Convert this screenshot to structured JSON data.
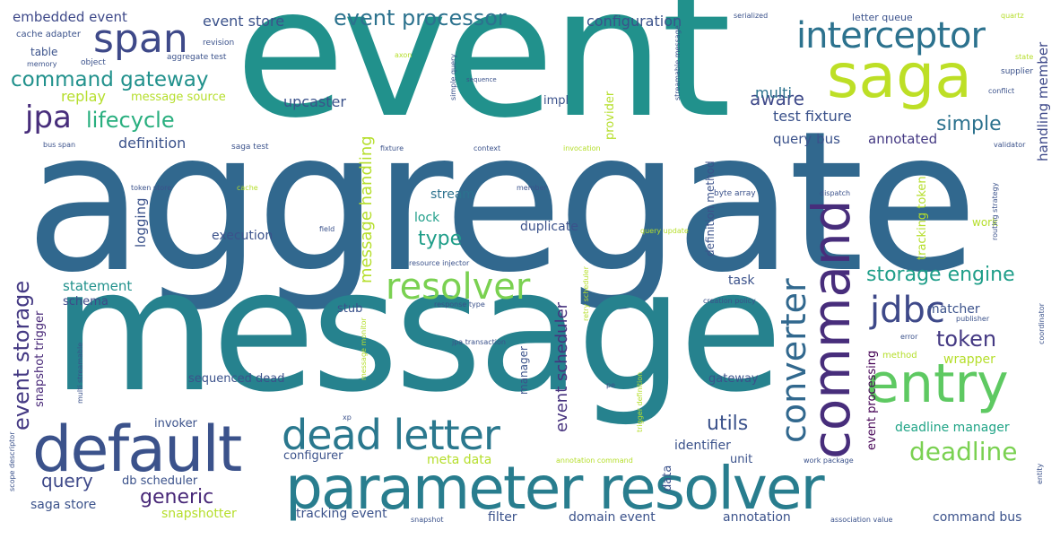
{
  "words": [
    {
      "text": "aggregate",
      "color": "#31688e"
    },
    {
      "text": "event",
      "color": "#21918c"
    },
    {
      "text": "message",
      "color": "#26828e"
    },
    {
      "text": "parameter resolver",
      "color": "#287d8e"
    },
    {
      "text": "default",
      "color": "#3b528b"
    },
    {
      "text": "command",
      "color": "#472d7b"
    },
    {
      "text": "saga",
      "color": "#bddf26"
    },
    {
      "text": "entry",
      "color": "#5ec962"
    },
    {
      "text": "dead letter",
      "color": "#2a788e"
    },
    {
      "text": "span",
      "color": "#3e4989"
    },
    {
      "text": "interceptor",
      "color": "#2c728e"
    },
    {
      "text": "converter",
      "color": "#31688e"
    },
    {
      "text": "resolver",
      "color": "#7ad151"
    },
    {
      "text": "jdbc",
      "color": "#3e4989"
    },
    {
      "text": "event processor",
      "color": "#2c728e"
    },
    {
      "text": "command gateway",
      "color": "#21918c"
    },
    {
      "text": "lifecycle",
      "color": "#29af7f"
    },
    {
      "text": "jpa",
      "color": "#472d7b"
    },
    {
      "text": "event storage",
      "color": "#443983"
    },
    {
      "text": "token",
      "color": "#443983"
    },
    {
      "text": "storage engine",
      "color": "#1f9e89"
    },
    {
      "text": "deadline",
      "color": "#7ad151"
    },
    {
      "text": "generic",
      "color": "#482878"
    },
    {
      "text": "simple",
      "color": "#2c728e"
    },
    {
      "text": "type",
      "color": "#1f9e89"
    },
    {
      "text": "query",
      "color": "#3e4989"
    },
    {
      "text": "event scheduler",
      "color": "#46327e"
    },
    {
      "text": "utils",
      "color": "#3b528b"
    },
    {
      "text": "aware",
      "color": "#3e4989"
    },
    {
      "text": "message handling",
      "color": "#b5de2b"
    },
    {
      "text": "embedded event",
      "color": "#3e4989"
    },
    {
      "text": "event store",
      "color": "#3b528b"
    },
    {
      "text": "configuration",
      "color": "#3b528b"
    },
    {
      "text": "replay",
      "color": "#b5de2b"
    },
    {
      "text": "message source",
      "color": "#b5de2b"
    },
    {
      "text": "upcaster",
      "color": "#3b528b"
    },
    {
      "text": "multi",
      "color": "#2c728e"
    },
    {
      "text": "test fixture",
      "color": "#3b528b"
    },
    {
      "text": "definition",
      "color": "#3b528b"
    },
    {
      "text": "query bus",
      "color": "#3b528b"
    },
    {
      "text": "annotated",
      "color": "#443983"
    },
    {
      "text": "handling member",
      "color": "#3e4989"
    },
    {
      "text": "logging",
      "color": "#3b528b"
    },
    {
      "text": "stream",
      "color": "#2c728e"
    },
    {
      "text": "lock",
      "color": "#1f9e89"
    },
    {
      "text": "duplicate",
      "color": "#3b528b"
    },
    {
      "text": "execution",
      "color": "#3b528b"
    },
    {
      "text": "statement",
      "color": "#21918c"
    },
    {
      "text": "schema",
      "color": "#3e4989"
    },
    {
      "text": "snapshot trigger",
      "color": "#482878"
    },
    {
      "text": "task",
      "color": "#3b528b"
    },
    {
      "text": "stub",
      "color": "#3b528b"
    },
    {
      "text": "matcher",
      "color": "#3b528b"
    },
    {
      "text": "wrapper",
      "color": "#b5de2b"
    },
    {
      "text": "event processing",
      "color": "#440154"
    },
    {
      "text": "sequenced dead",
      "color": "#3b528b"
    },
    {
      "text": "gateway",
      "color": "#3b528b"
    },
    {
      "text": "deadline manager",
      "color": "#20a486"
    },
    {
      "text": "identifier",
      "color": "#3b528b"
    },
    {
      "text": "invoker",
      "color": "#3b528b"
    },
    {
      "text": "configurer",
      "color": "#3b528b"
    },
    {
      "text": "unit",
      "color": "#3b528b"
    },
    {
      "text": "meta data",
      "color": "#b5de2b"
    },
    {
      "text": "data",
      "color": "#3b528b"
    },
    {
      "text": "db scheduler",
      "color": "#3b528b"
    },
    {
      "text": "saga store",
      "color": "#3b528b"
    },
    {
      "text": "snapshotter",
      "color": "#b5de2b"
    },
    {
      "text": "tracking event",
      "color": "#3b528b"
    },
    {
      "text": "filter",
      "color": "#3b528b"
    },
    {
      "text": "domain event",
      "color": "#3b528b"
    },
    {
      "text": "annotation",
      "color": "#3b528b"
    },
    {
      "text": "command bus",
      "color": "#3b528b"
    },
    {
      "text": "tracking token",
      "color": "#b5de2b"
    },
    {
      "text": "letter queue",
      "color": "#3b528b"
    },
    {
      "text": "impl",
      "color": "#3b528b"
    },
    {
      "text": "provider",
      "color": "#b5de2b"
    },
    {
      "text": "work",
      "color": "#b5de2b"
    },
    {
      "text": "definition method",
      "color": "#3b528b"
    },
    {
      "text": "manager",
      "color": "#3b528b"
    },
    {
      "text": "cache adapter",
      "color": "#3b528b"
    },
    {
      "text": "table",
      "color": "#3b528b"
    },
    {
      "text": "memory",
      "color": "#3b528b"
    },
    {
      "text": "object",
      "color": "#3b528b"
    },
    {
      "text": "aggregate test",
      "color": "#3b528b"
    },
    {
      "text": "revision",
      "color": "#3b528b"
    },
    {
      "text": "serialized",
      "color": "#3b528b"
    },
    {
      "text": "streamable message",
      "color": "#3b528b"
    },
    {
      "text": "quartz",
      "color": "#b5de2b"
    },
    {
      "text": "state",
      "color": "#b5de2b"
    },
    {
      "text": "supplier",
      "color": "#3b528b"
    },
    {
      "text": "conflict",
      "color": "#3b528b"
    },
    {
      "text": "simple query",
      "color": "#3b528b"
    },
    {
      "text": "sequence",
      "color": "#3b528b"
    },
    {
      "text": "axon",
      "color": "#b5de2b"
    },
    {
      "text": "bus span",
      "color": "#3b528b"
    },
    {
      "text": "saga test",
      "color": "#3b528b"
    },
    {
      "text": "fixture",
      "color": "#3b528b"
    },
    {
      "text": "context",
      "color": "#3b528b"
    },
    {
      "text": "invocation",
      "color": "#b5de2b"
    },
    {
      "text": "validator",
      "color": "#3b528b"
    },
    {
      "text": "token store",
      "color": "#3b528b"
    },
    {
      "text": "cache",
      "color": "#b5de2b"
    },
    {
      "text": "member",
      "color": "#3b528b"
    },
    {
      "text": "byte array",
      "color": "#3b528b"
    },
    {
      "text": "dispatch",
      "color": "#3b528b"
    },
    {
      "text": "routing strategy",
      "color": "#3b528b"
    },
    {
      "text": "field",
      "color": "#3b528b"
    },
    {
      "text": "query update",
      "color": "#b5de2b"
    },
    {
      "text": "resource injector",
      "color": "#3b528b"
    },
    {
      "text": "retry scheduler",
      "color": "#b5de2b"
    },
    {
      "text": "response type",
      "color": "#3b528b"
    },
    {
      "text": "creation policy",
      "color": "#3b528b"
    },
    {
      "text": "publisher",
      "color": "#3b528b"
    },
    {
      "text": "coordinator",
      "color": "#3b528b"
    },
    {
      "text": "error",
      "color": "#3b528b"
    },
    {
      "text": "jpa transaction",
      "color": "#3b528b"
    },
    {
      "text": "multi streamable",
      "color": "#3b528b"
    },
    {
      "text": "message monitor",
      "color": "#b5de2b"
    },
    {
      "text": "trigger definition",
      "color": "#b5de2b"
    },
    {
      "text": "method",
      "color": "#b5de2b"
    },
    {
      "text": "pe",
      "color": "#3b528b"
    },
    {
      "text": "xp",
      "color": "#3b528b"
    },
    {
      "text": "annotation command",
      "color": "#b5de2b"
    },
    {
      "text": "work package",
      "color": "#3b528b"
    },
    {
      "text": "entity",
      "color": "#3b528b"
    },
    {
      "text": "scope descriptor",
      "color": "#3b528b"
    },
    {
      "text": "snapshot",
      "color": "#3b528b"
    },
    {
      "text": "association value",
      "color": "#3b528b"
    }
  ]
}
